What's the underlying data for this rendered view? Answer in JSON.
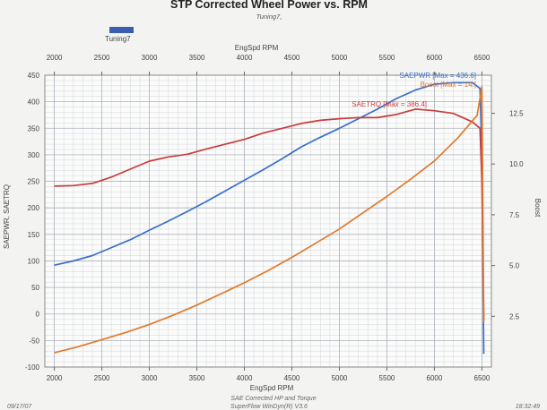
{
  "chart_data": {
    "type": "line",
    "title": "STP Corrected Wheel Power vs. RPM",
    "subtitle": "Tuning7,",
    "legend": {
      "label": "Tuning7",
      "color": "#3a5fb0",
      "placement": "top-left"
    },
    "xlabel_top": "EngSpd  RPM",
    "xlabel_bottom": "EngSpd  RPM",
    "xlabel_bottom2": "SAE Corrected HP and Torque",
    "ylabel_left": "SAEPWR, SAETRQ",
    "ylabel_right": "Boost",
    "xlim": [
      1900,
      6600
    ],
    "ylim_left": [
      -100,
      450
    ],
    "ylim_right": [
      0,
      14.375
    ],
    "x_ticks": [
      "2000",
      "2500",
      "3000",
      "3500",
      "4000",
      "4500",
      "5000",
      "5500",
      "6000",
      "6500"
    ],
    "x_tick_values": [
      2000,
      2500,
      3000,
      3500,
      4000,
      4500,
      5000,
      5500,
      6000,
      6500
    ],
    "y_left_ticks": [
      "450",
      "400",
      "350",
      "300",
      "250",
      "200",
      "150",
      "100",
      "50",
      "0",
      "-50",
      "-100"
    ],
    "y_left_tick_values": [
      450,
      400,
      350,
      300,
      250,
      200,
      150,
      100,
      50,
      0,
      -50,
      -100
    ],
    "y_right_ticks": [
      "12.5",
      "10.0",
      "7.5",
      "5.0",
      "2.5"
    ],
    "y_right_tick_values": [
      12.5,
      10.0,
      7.5,
      5.0,
      2.5
    ],
    "grid": true,
    "annotations": {
      "pwr": {
        "text": "SAEPWR [Max = 436.6]",
        "color": "#3a6fc8"
      },
      "trq": {
        "text": "SAETRQ [Max = 386.4]",
        "color": "#c83c3c"
      },
      "boost": {
        "text": "Boost  [Max = 14.]",
        "color": "#e07a2c"
      }
    },
    "footer_left": "09/17/07",
    "footer_center": "SuperFlow WinDyn(R) V3.6",
    "footer_right": "18:32:49",
    "series": [
      {
        "name": "SAEPWR",
        "axis": "left",
        "color": "#3a6fc8",
        "x": [
          2000,
          2200,
          2400,
          2600,
          2800,
          3000,
          3200,
          3400,
          3600,
          3800,
          4000,
          4200,
          4400,
          4600,
          4800,
          5000,
          5200,
          5400,
          5600,
          5800,
          6000,
          6200,
          6400,
          6480,
          6500,
          6510,
          6520
        ],
        "y": [
          92,
          100,
          110,
          125,
          140,
          158,
          175,
          193,
          212,
          232,
          252,
          272,
          293,
          315,
          333,
          350,
          368,
          386,
          406,
          422,
          433,
          436,
          436,
          425,
          300,
          100,
          -75
        ]
      },
      {
        "name": "SAETRQ",
        "axis": "left",
        "color": "#c83c3c",
        "x": [
          2000,
          2200,
          2400,
          2600,
          2800,
          3000,
          3200,
          3400,
          3600,
          3800,
          4000,
          4200,
          4400,
          4600,
          4800,
          5000,
          5200,
          5400,
          5600,
          5800,
          6000,
          6200,
          6400,
          6480,
          6500,
          6510,
          6520
        ],
        "y": [
          241,
          242,
          246,
          258,
          273,
          288,
          296,
          301,
          311,
          320,
          329,
          341,
          350,
          359,
          365,
          368,
          370,
          370,
          376,
          386,
          383,
          378,
          362,
          350,
          250,
          110,
          -10
        ]
      },
      {
        "name": "Boost",
        "axis": "right",
        "color": "#e07a2c",
        "x": [
          2000,
          2250,
          2500,
          2750,
          3000,
          3250,
          3500,
          3750,
          4000,
          4250,
          4500,
          4750,
          5000,
          5250,
          5500,
          5750,
          6000,
          6250,
          6450,
          6500,
          6520
        ],
        "y": [
          0.7,
          1.0,
          1.35,
          1.7,
          2.1,
          2.55,
          3.05,
          3.6,
          4.15,
          4.75,
          5.4,
          6.1,
          6.8,
          7.6,
          8.4,
          9.25,
          10.15,
          11.3,
          12.4,
          13.8,
          2.2
        ]
      }
    ]
  }
}
